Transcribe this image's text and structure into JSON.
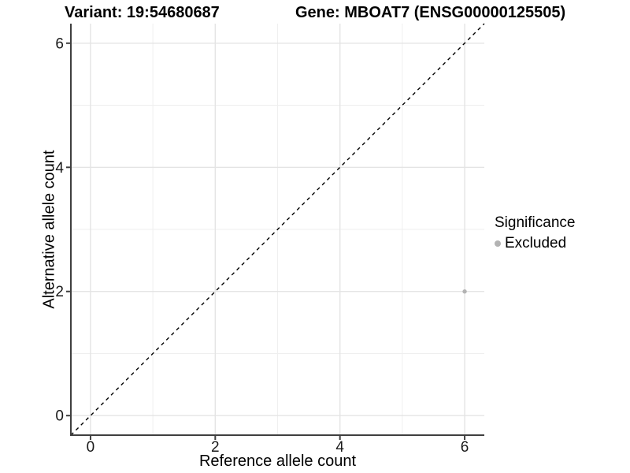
{
  "titles": {
    "variant": "Variant: 19:54680687",
    "gene": "Gene: MBOAT7 (ENSG00000125505)"
  },
  "chart_data": {
    "type": "scatter",
    "xlabel": "Reference allele count",
    "ylabel": "Alternative allele count",
    "xlim": [
      -0.315,
      6.315
    ],
    "ylim": [
      -0.315,
      6.315
    ],
    "xticks": [
      0,
      2,
      4,
      6
    ],
    "yticks": [
      0,
      2,
      4,
      6
    ],
    "minor_breaks": [
      1,
      3,
      5
    ],
    "grid": true,
    "identity_line": {
      "type": "dashed",
      "slope": 1,
      "intercept": 0,
      "color": "#000000"
    },
    "points": [
      {
        "x": 6,
        "y": 2,
        "series": "Excluded",
        "color": "#b3b3b3"
      }
    ],
    "legend": {
      "title": "Significance",
      "position": "right",
      "entries": [
        {
          "label": "Excluded",
          "color": "#b3b3b3"
        }
      ]
    }
  },
  "colors": {
    "axis_line": "#3f3f3f",
    "tick_text": "#1a1a1a",
    "grid_major": "#e4e4e4",
    "grid_minor": "#efefef",
    "background": "#ffffff"
  }
}
